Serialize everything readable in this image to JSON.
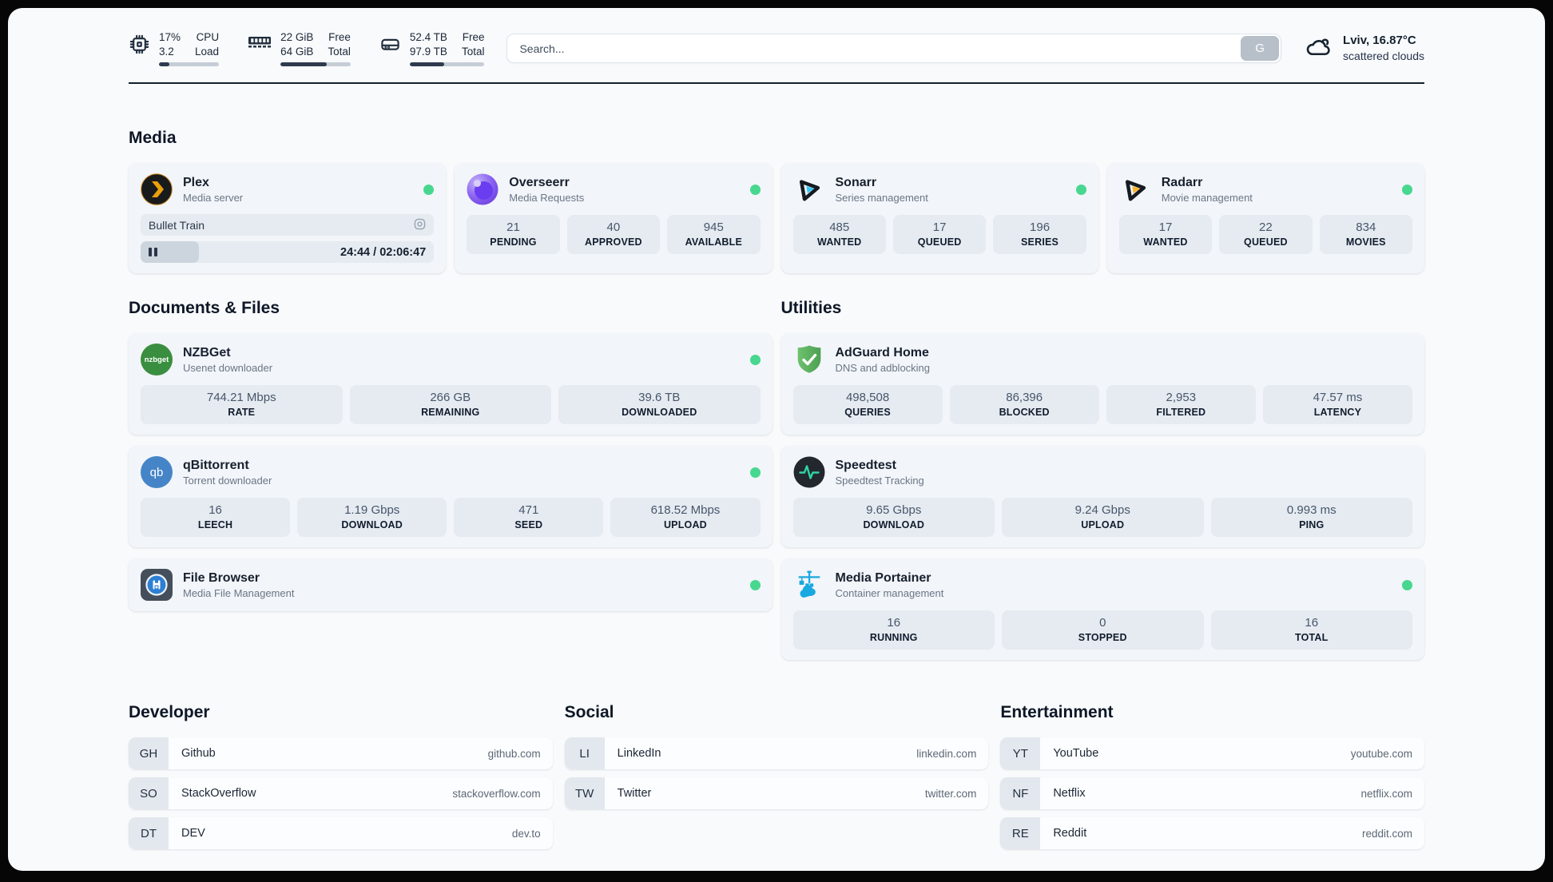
{
  "header": {
    "cpu": {
      "value_top": "17%",
      "value_bottom": "3.2",
      "label_top": "CPU",
      "label_bottom": "Load",
      "bar_fill": "17%"
    },
    "ram": {
      "value_top": "22 GiB",
      "value_bottom": "64 GiB",
      "label_top": "Free",
      "label_bottom": "Total",
      "bar_fill": "66%"
    },
    "disk": {
      "value_top": "52.4 TB",
      "value_bottom": "97.9 TB",
      "label_top": "Free",
      "label_bottom": "Total",
      "bar_fill": "46%"
    },
    "search": {
      "placeholder": "Search...",
      "button_label": "G"
    },
    "weather": {
      "location": "Lviv, 16.87°C",
      "condition": "scattered clouds"
    }
  },
  "sections": {
    "media": "Media",
    "documents": "Documents & Files",
    "utilities": "Utilities"
  },
  "apps": {
    "plex": {
      "name": "Plex",
      "subtitle": "Media server",
      "now_playing": "Bullet Train",
      "time": "24:44 / 02:06:47",
      "progress": "20%"
    },
    "overseerr": {
      "name": "Overseerr",
      "subtitle": "Media Requests",
      "stats": [
        {
          "value": "21",
          "label": "PENDING"
        },
        {
          "value": "40",
          "label": "APPROVED"
        },
        {
          "value": "945",
          "label": "AVAILABLE"
        }
      ]
    },
    "sonarr": {
      "name": "Sonarr",
      "subtitle": "Series management",
      "stats": [
        {
          "value": "485",
          "label": "WANTED"
        },
        {
          "value": "17",
          "label": "QUEUED"
        },
        {
          "value": "196",
          "label": "SERIES"
        }
      ]
    },
    "radarr": {
      "name": "Radarr",
      "subtitle": "Movie management",
      "stats": [
        {
          "value": "17",
          "label": "WANTED"
        },
        {
          "value": "22",
          "label": "QUEUED"
        },
        {
          "value": "834",
          "label": "MOVIES"
        }
      ]
    },
    "nzbget": {
      "name": "NZBGet",
      "subtitle": "Usenet downloader",
      "stats": [
        {
          "value": "744.21 Mbps",
          "label": "RATE"
        },
        {
          "value": "266 GB",
          "label": "REMAINING"
        },
        {
          "value": "39.6 TB",
          "label": "DOWNLOADED"
        }
      ]
    },
    "qbittorrent": {
      "name": "qBittorrent",
      "subtitle": "Torrent downloader",
      "stats": [
        {
          "value": "16",
          "label": "LEECH"
        },
        {
          "value": "1.19 Gbps",
          "label": "DOWNLOAD"
        },
        {
          "value": "471",
          "label": "SEED"
        },
        {
          "value": "618.52 Mbps",
          "label": "UPLOAD"
        }
      ]
    },
    "filebrowser": {
      "name": "File Browser",
      "subtitle": "Media File Management"
    },
    "adguard": {
      "name": "AdGuard Home",
      "subtitle": "DNS and adblocking",
      "stats": [
        {
          "value": "498,508",
          "label": "QUERIES"
        },
        {
          "value": "86,396",
          "label": "BLOCKED"
        },
        {
          "value": "2,953",
          "label": "FILTERED"
        },
        {
          "value": "47.57 ms",
          "label": "LATENCY"
        }
      ]
    },
    "speedtest": {
      "name": "Speedtest",
      "subtitle": "Speedtest Tracking",
      "stats": [
        {
          "value": "9.65 Gbps",
          "label": "DOWNLOAD"
        },
        {
          "value": "9.24 Gbps",
          "label": "UPLOAD"
        },
        {
          "value": "0.993 ms",
          "label": "PING"
        }
      ]
    },
    "portainer": {
      "name": "Media Portainer",
      "subtitle": "Container management",
      "stats": [
        {
          "value": "16",
          "label": "RUNNING"
        },
        {
          "value": "0",
          "label": "STOPPED"
        },
        {
          "value": "16",
          "label": "TOTAL"
        }
      ]
    }
  },
  "icon_text": {
    "nzbget": "nzbget",
    "qbittorrent": "qb"
  },
  "bookmarks": [
    {
      "title": "Developer",
      "links": [
        {
          "abbr": "GH",
          "name": "Github",
          "url": "github.com"
        },
        {
          "abbr": "SO",
          "name": "StackOverflow",
          "url": "stackoverflow.com"
        },
        {
          "abbr": "DT",
          "name": "DEV",
          "url": "dev.to"
        }
      ]
    },
    {
      "title": "Social",
      "links": [
        {
          "abbr": "LI",
          "name": "LinkedIn",
          "url": "linkedin.com"
        },
        {
          "abbr": "TW",
          "name": "Twitter",
          "url": "twitter.com"
        }
      ]
    },
    {
      "title": "Entertainment",
      "links": [
        {
          "abbr": "YT",
          "name": "YouTube",
          "url": "youtube.com"
        },
        {
          "abbr": "NF",
          "name": "Netflix",
          "url": "netflix.com"
        },
        {
          "abbr": "RE",
          "name": "Reddit",
          "url": "reddit.com"
        }
      ]
    }
  ],
  "colors": {
    "status_online": "#47d78f",
    "bar_fill": "#2e3b4e",
    "accent_badge": "#e3e8ee"
  }
}
